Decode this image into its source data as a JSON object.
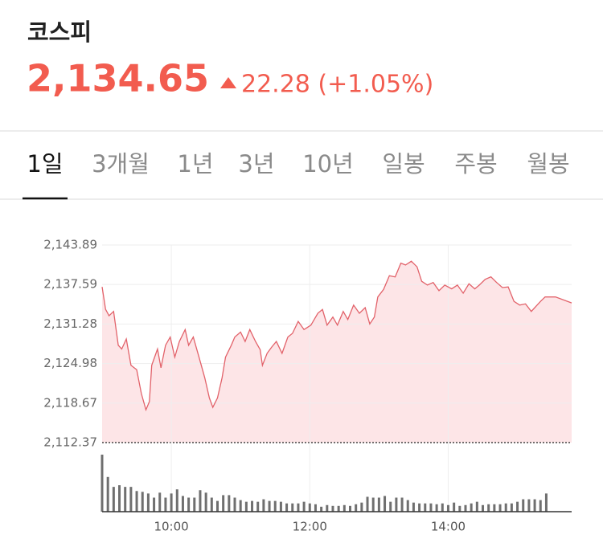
{
  "header": {
    "title": "코스피",
    "price": "2,134.65",
    "change": "22.28 (+1.05%)"
  },
  "tabs": [
    "1일",
    "3개월",
    "1년",
    "3년",
    "10년",
    "일봉",
    "주봉",
    "월봉"
  ],
  "chart_data": [
    {
      "type": "area",
      "color": "#e2626a",
      "fill": "#fde5e7",
      "x": [
        "09:00",
        "09:03",
        "09:06",
        "09:10",
        "09:14",
        "09:17",
        "09:21",
        "09:25",
        "09:30",
        "09:34",
        "09:38",
        "09:41",
        "09:43",
        "09:48",
        "09:51",
        "09:55",
        "09:59",
        "10:03",
        "10:07",
        "10:12",
        "10:15",
        "10:19",
        "10:24",
        "10:29",
        "10:33",
        "10:36",
        "10:40",
        "10:44",
        "10:47",
        "10:52",
        "10:55",
        "11:00",
        "11:04",
        "11:08",
        "11:13",
        "11:17",
        "11:19",
        "11:23",
        "11:27",
        "11:31",
        "11:36",
        "11:41",
        "11:45",
        "11:50",
        "11:55",
        "12:01",
        "12:07",
        "12:11",
        "12:15",
        "12:20",
        "12:24",
        "12:29",
        "12:33",
        "12:38",
        "12:43",
        "12:48",
        "12:52",
        "12:56",
        "12:59",
        "13:04",
        "13:09",
        "13:14",
        "13:19",
        "13:23",
        "13:28",
        "13:33",
        "13:37",
        "13:42",
        "13:47",
        "13:52",
        "13:57",
        "14:03",
        "14:08",
        "14:13",
        "14:18",
        "14:23",
        "14:27",
        "14:32",
        "14:37",
        "14:42",
        "14:47",
        "14:52",
        "14:57",
        "15:02",
        "15:07",
        "15:12",
        "15:15",
        "15:20",
        "15:24",
        "15:33",
        "15:47"
      ],
      "values": [
        2137.22,
        2133.63,
        2132.6,
        2133.3,
        2127.9,
        2127.3,
        2128.9,
        2124.7,
        2124.0,
        2120.2,
        2117.6,
        2118.9,
        2124.7,
        2127.3,
        2124.3,
        2127.9,
        2129.2,
        2126.0,
        2128.5,
        2130.4,
        2127.9,
        2129.2,
        2126.0,
        2122.7,
        2119.5,
        2118.0,
        2119.5,
        2122.7,
        2126.0,
        2127.9,
        2129.2,
        2130.0,
        2128.5,
        2130.4,
        2128.5,
        2127.2,
        2124.7,
        2126.6,
        2127.6,
        2128.5,
        2126.6,
        2129.2,
        2129.8,
        2131.7,
        2130.4,
        2131.1,
        2133.0,
        2133.6,
        2131.1,
        2132.4,
        2131.1,
        2133.3,
        2132.0,
        2134.3,
        2133.0,
        2133.9,
        2131.3,
        2132.4,
        2135.6,
        2136.8,
        2139.0,
        2138.8,
        2141.0,
        2140.7,
        2141.3,
        2140.4,
        2138.1,
        2137.5,
        2137.9,
        2136.6,
        2137.5,
        2136.9,
        2137.5,
        2136.2,
        2137.7,
        2136.9,
        2137.5,
        2138.4,
        2138.8,
        2137.9,
        2137.1,
        2137.2,
        2134.9,
        2134.3,
        2134.5,
        2133.3,
        2133.9,
        2134.9,
        2135.6,
        2135.6,
        2134.65
      ],
      "xlim": [
        "09:00",
        "15:47"
      ],
      "xticks": [
        "10:00",
        "12:00",
        "14:00"
      ],
      "ylim": [
        2112.37,
        2143.89
      ],
      "yticks": [
        {
          "value": 2112.37,
          "label": "2,112.37"
        },
        {
          "value": 2118.67,
          "label": "2,118.67"
        },
        {
          "value": 2124.98,
          "label": "2,124.98"
        },
        {
          "value": 2131.28,
          "label": "2,131.28"
        },
        {
          "value": 2137.59,
          "label": "2,137.59"
        },
        {
          "value": 2143.89,
          "label": "2,143.89"
        }
      ],
      "grid": true
    },
    {
      "type": "bar",
      "color": "#6f6f6f",
      "x": [
        "09:00",
        "09:05",
        "09:10",
        "09:15",
        "09:20",
        "09:25",
        "09:30",
        "09:35",
        "09:40",
        "09:45",
        "09:50",
        "09:55",
        "10:00",
        "10:05",
        "10:10",
        "10:15",
        "10:20",
        "10:25",
        "10:30",
        "10:35",
        "10:40",
        "10:45",
        "10:50",
        "10:55",
        "11:00",
        "11:05",
        "11:10",
        "11:15",
        "11:20",
        "11:25",
        "11:30",
        "11:35",
        "11:40",
        "11:45",
        "11:50",
        "11:55",
        "12:00",
        "12:05",
        "12:10",
        "12:15",
        "12:20",
        "12:25",
        "12:30",
        "12:35",
        "12:40",
        "12:45",
        "12:50",
        "12:55",
        "13:00",
        "13:05",
        "13:10",
        "13:15",
        "13:20",
        "13:25",
        "13:30",
        "13:35",
        "13:40",
        "13:45",
        "13:50",
        "13:55",
        "14:00",
        "14:05",
        "14:10",
        "14:15",
        "14:20",
        "14:25",
        "14:30",
        "14:35",
        "14:40",
        "14:45",
        "14:50",
        "14:55",
        "15:00",
        "15:05",
        "15:10",
        "15:15",
        "15:20",
        "15:25"
      ],
      "values": [
        69,
        42,
        30,
        32,
        30,
        30,
        25,
        24,
        22,
        17,
        23,
        17,
        22,
        27,
        19,
        17,
        17,
        26,
        23,
        17,
        13,
        20,
        20,
        17,
        14,
        12,
        13,
        12,
        15,
        13,
        13,
        12,
        10,
        10,
        10,
        12,
        10,
        9,
        6,
        8,
        7,
        7,
        8,
        7,
        9,
        11,
        18,
        17,
        17,
        19,
        12,
        17,
        17,
        14,
        11,
        10,
        10,
        10,
        9,
        10,
        8,
        11,
        7,
        8,
        10,
        12,
        8,
        9,
        9,
        9,
        10,
        10,
        12,
        15,
        15,
        15,
        14,
        22
      ]
    }
  ]
}
